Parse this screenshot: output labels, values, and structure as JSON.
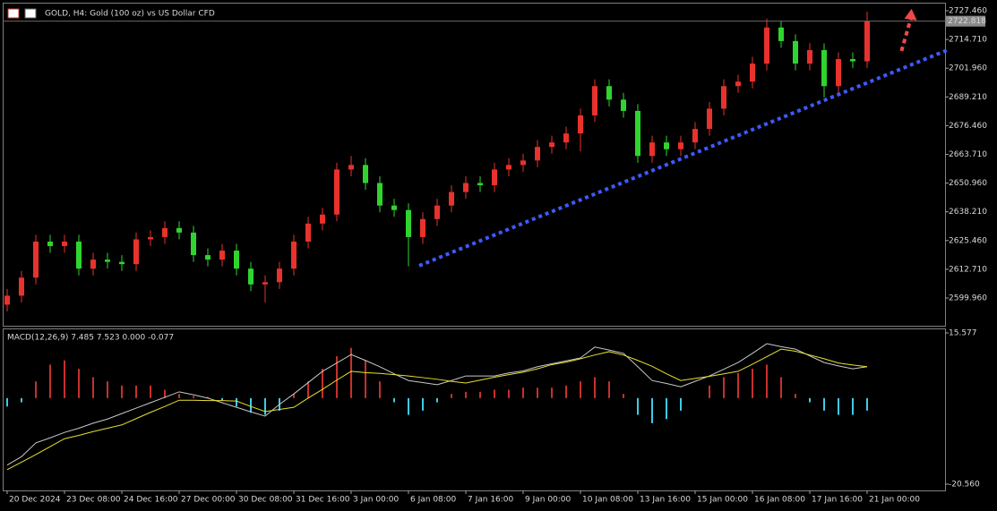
{
  "header": {
    "title": "GOLD, H4:  Gold (100 oz) vs US Dollar CFD"
  },
  "chart_data": [
    {
      "type": "candlestick",
      "categories": [
        "20 Dec 2024",
        null,
        null,
        null,
        "23 Dec 08:00",
        null,
        null,
        null,
        "24 Dec 16:00",
        null,
        null,
        null,
        "27 Dec 00:00",
        null,
        null,
        null,
        "30 Dec 08:00",
        null,
        null,
        null,
        "31 Dec 16:00",
        null,
        null,
        null,
        "3 Jan 00:00",
        null,
        null,
        null,
        "6 Jan 08:00",
        null,
        null,
        null,
        "7 Jan 16:00",
        null,
        null,
        null,
        "9 Jan 00:00",
        null,
        null,
        null,
        "10 Jan 08:00",
        null,
        null,
        null,
        "13 Jan 16:00",
        null,
        null,
        null,
        "15 Jan 00:00",
        null,
        null,
        null,
        "16 Jan 08:00",
        null,
        null,
        null,
        "17 Jan 16:00",
        null,
        null,
        null,
        "21 Jan 00:00"
      ],
      "open": [
        2597,
        2601,
        2609,
        2625,
        2623,
        2625,
        2613,
        2617,
        2616,
        2615,
        2626,
        2627,
        2631,
        2629,
        2619,
        2617,
        2621,
        2613,
        2606,
        2607,
        2613,
        2625,
        2633,
        2637,
        2657,
        2659,
        2651,
        2641,
        2639,
        2627,
        2635,
        2641,
        2647,
        2651,
        2650,
        2657,
        2659,
        2661,
        2667,
        2669,
        2673,
        2681,
        2694,
        2688,
        2683,
        2663,
        2669,
        2666,
        2669,
        2675,
        2684,
        2694,
        2696,
        2704,
        2720,
        2714,
        2704,
        2710,
        2694,
        2706,
        2705
      ],
      "high": [
        2604,
        2612,
        2628,
        2628,
        2628,
        2628,
        2620,
        2620,
        2619,
        2629,
        2630,
        2634,
        2634,
        2632,
        2622,
        2624,
        2624,
        2616,
        2610,
        2616,
        2628,
        2636,
        2640,
        2660,
        2663,
        2662,
        2654,
        2644,
        2642,
        2638,
        2644,
        2650,
        2654,
        2654,
        2660,
        2662,
        2664,
        2670,
        2672,
        2676,
        2684,
        2697,
        2697,
        2691,
        2686,
        2672,
        2672,
        2672,
        2678,
        2687,
        2697,
        2699,
        2707,
        2724,
        2723,
        2717,
        2713,
        2713,
        2709,
        2709,
        2727
      ],
      "low": [
        2594,
        2598,
        2606,
        2620,
        2620,
        2610,
        2610,
        2613,
        2612,
        2612,
        2623,
        2624,
        2626,
        2616,
        2614,
        2614,
        2610,
        2603,
        2598,
        2604,
        2610,
        2622,
        2630,
        2634,
        2654,
        2648,
        2638,
        2636,
        2614,
        2624,
        2632,
        2638,
        2644,
        2647,
        2647,
        2654,
        2656,
        2658,
        2664,
        2666,
        2665,
        2678,
        2685,
        2680,
        2660,
        2660,
        2663,
        2663,
        2666,
        2672,
        2681,
        2691,
        2693,
        2701,
        2711,
        2701,
        2701,
        2689,
        2691,
        2702,
        2702
      ],
      "close": [
        2601,
        2609,
        2625,
        2623,
        2625,
        2613,
        2617,
        2616,
        2615,
        2626,
        2627,
        2631,
        2629,
        2619,
        2617,
        2621,
        2613,
        2606,
        2607,
        2613,
        2625,
        2633,
        2637,
        2657,
        2659,
        2651,
        2641,
        2639,
        2627,
        2635,
        2641,
        2647,
        2651,
        2650,
        2657,
        2659,
        2661,
        2667,
        2669,
        2673,
        2681,
        2694,
        2688,
        2683,
        2663,
        2669,
        2666,
        2669,
        2675,
        2684,
        2694,
        2696,
        2704,
        2720,
        2714,
        2704,
        2710,
        2694,
        2706,
        2705,
        2722.8
      ],
      "up_color": "#e8322d",
      "down_color": "#2fd42f",
      "xlim": [
        -0.3125,
        65.4375
      ],
      "ylim": [
        2587.65,
        2731.03
      ],
      "yticks": [
        {
          "value": 2727.46,
          "label": "2727.460"
        },
        {
          "value": 2714.71,
          "label": "2714.710"
        },
        {
          "value": 2701.96,
          "label": "2701.960"
        },
        {
          "value": 2689.21,
          "label": "2689.210"
        },
        {
          "value": 2676.46,
          "label": "2676.460"
        },
        {
          "value": 2663.71,
          "label": "2663.710"
        },
        {
          "value": 2650.96,
          "label": "2650.960"
        },
        {
          "value": 2638.21,
          "label": "2638.210"
        },
        {
          "value": 2625.46,
          "label": "2625.460"
        },
        {
          "value": 2612.71,
          "label": "2612.710"
        },
        {
          "value": 2599.96,
          "label": "2599.960"
        }
      ],
      "last_price": 2722.818,
      "trendline": {
        "color": "#3d5afe",
        "x": [
          28.75,
          65.75
        ],
        "values": [
          2614.3,
          2710.4
        ]
      },
      "arrow": {
        "color": "#f04848",
        "x": [
          62.4,
          63.1
        ],
        "values": [
          2709.6,
          2728.3
        ]
      }
    },
    {
      "type": "macd",
      "label": "MACD(12,26,9) 7.485 7.523 0.000 -0.077",
      "histogram": [
        -2,
        -1,
        4,
        8,
        9,
        7,
        5,
        4,
        3,
        3,
        3,
        2,
        1,
        0.5,
        0.3,
        -0.5,
        -2,
        -3.5,
        -4,
        -3,
        1,
        4,
        7,
        10,
        12,
        9,
        4,
        -1,
        -4,
        -3,
        -1,
        1,
        1.5,
        1.5,
        2,
        2,
        2.5,
        2.5,
        2.5,
        3,
        4,
        5,
        4,
        1,
        -4,
        -6,
        -5,
        -3,
        0,
        3,
        5,
        6,
        7,
        8,
        5,
        1,
        -1,
        -3,
        -4,
        -4,
        -3
      ],
      "hist_pos_color": "#c8302c",
      "hist_neg_color": "#3ecbe6",
      "series": [
        {
          "color": "#c8c8c8",
          "values": [
            -16,
            -14,
            -10.7,
            -9.5,
            -8.2,
            -7.2,
            -6,
            -5,
            -3.7,
            -2.4,
            -1.1,
            0.2,
            1.5,
            0.8,
            0,
            -1.1,
            -2.2,
            -3.3,
            -4.3,
            -1.5,
            1,
            3.7,
            6.4,
            8.4,
            10.4,
            9,
            7.5,
            5.8,
            4.2,
            3.7,
            3.2,
            4.2,
            5.3,
            5.3,
            5.3,
            6,
            6.5,
            7.5,
            8.2,
            8.9,
            9.6,
            12.2,
            11.5,
            10.7,
            7.5,
            4.2,
            3.5,
            2.7,
            4,
            5.3,
            6.9,
            8.5,
            10.7,
            13,
            12.3,
            11.7,
            10.1,
            8.5,
            7.7,
            7,
            7.5
          ]
        },
        {
          "color": "#e8e030",
          "values": [
            -17.1,
            -15.3,
            -13.5,
            -11.6,
            -9.7,
            -8.9,
            -8,
            -7.2,
            -6.4,
            -4.9,
            -3.4,
            -2,
            -0.5,
            -0.5,
            -0.6,
            -0.6,
            -0.7,
            -2,
            -3.2,
            -2.7,
            -2.2,
            0,
            2.1,
            4.3,
            6.4,
            6.1,
            5.9,
            5.6,
            5.3,
            4.9,
            4.5,
            4,
            3.6,
            4.3,
            5,
            5.6,
            6.2,
            7,
            8,
            8.6,
            9.4,
            10.3,
            11.1,
            10.3,
            9,
            7.6,
            5.8,
            4.2,
            4.7,
            5.2,
            5.8,
            6.4,
            8.1,
            9.9,
            11.7,
            11.2,
            10.3,
            9.4,
            8.4,
            7.9,
            7.5
          ]
        }
      ],
      "xlim": [
        -0.3125,
        65.4375
      ],
      "ylim": [
        -22.06,
        16.65
      ],
      "yticks": [
        15.577,
        {
          "value": -20.56,
          "label": "-20.560"
        }
      ]
    }
  ]
}
